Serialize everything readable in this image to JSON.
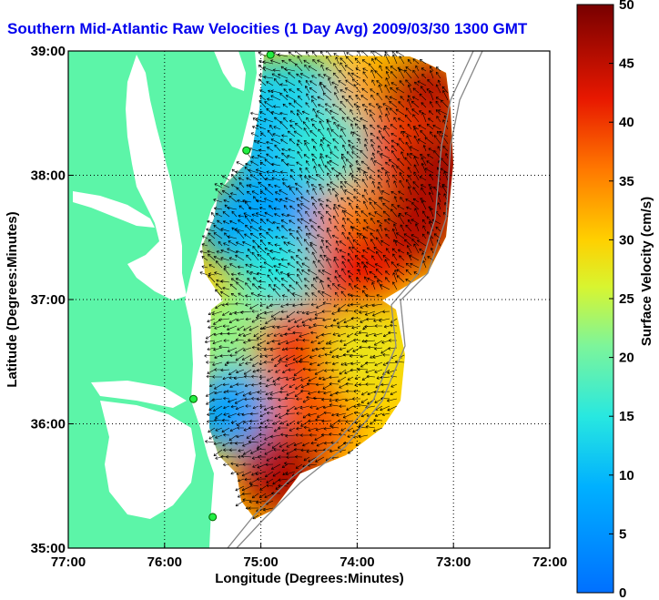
{
  "title": "Southern Mid-Atlantic Raw Velocities (1 Day Avg) 2009/03/30 1300 GMT",
  "map": {
    "xlabel": "Longitude (Degrees:Minutes)",
    "ylabel": "Latitude (Degrees:Minutes)",
    "x_ticks": [
      "77:00",
      "76:00",
      "75:00",
      "74:00",
      "73:00",
      "72:00"
    ],
    "y_ticks": [
      "39:00",
      "38:00",
      "37:00",
      "36:00",
      "35:00"
    ],
    "lon_range": [
      -77,
      -72
    ],
    "lat_range": [
      35,
      39
    ],
    "grid": "dotted",
    "land_color": "#5cf5a8",
    "background_color": "#ffffff"
  },
  "colorbar": {
    "label": "Surface Velocity (cm/s)",
    "range": [
      0,
      50
    ],
    "ticks": [
      "0",
      "5",
      "10",
      "15",
      "20",
      "25",
      "30",
      "35",
      "40",
      "45",
      "50"
    ],
    "colormap": "jet"
  },
  "chart_data": {
    "type": "heatmap",
    "description_units": "cm/s",
    "field": [
      {
        "lon": -74.9,
        "lat": 38.6,
        "value": 12
      },
      {
        "lon": -74.5,
        "lat": 38.6,
        "value": 13
      },
      {
        "lon": -73.8,
        "lat": 38.6,
        "value": 33
      },
      {
        "lon": -73.3,
        "lat": 38.6,
        "value": 46
      },
      {
        "lon": -74.9,
        "lat": 38.2,
        "value": 10
      },
      {
        "lon": -74.3,
        "lat": 38.2,
        "value": 16
      },
      {
        "lon": -73.5,
        "lat": 38.2,
        "value": 40
      },
      {
        "lon": -73.1,
        "lat": 38.0,
        "value": 47
      },
      {
        "lon": -75.2,
        "lat": 37.6,
        "value": 8
      },
      {
        "lon": -74.7,
        "lat": 37.6,
        "value": 6
      },
      {
        "lon": -74.0,
        "lat": 37.6,
        "value": 35
      },
      {
        "lon": -73.4,
        "lat": 37.6,
        "value": 46
      },
      {
        "lon": -74.8,
        "lat": 37.2,
        "value": 15
      },
      {
        "lon": -74.0,
        "lat": 37.2,
        "value": 42
      },
      {
        "lon": -75.3,
        "lat": 36.7,
        "value": 22
      },
      {
        "lon": -74.6,
        "lat": 36.6,
        "value": 40
      },
      {
        "lon": -73.9,
        "lat": 36.6,
        "value": 28
      },
      {
        "lon": -75.3,
        "lat": 36.1,
        "value": 7
      },
      {
        "lon": -74.5,
        "lat": 36.0,
        "value": 38
      },
      {
        "lon": -74.8,
        "lat": 35.6,
        "value": 46
      }
    ],
    "stations": [
      {
        "lon": -74.9,
        "lat": 38.97
      },
      {
        "lon": -75.15,
        "lat": 38.2
      },
      {
        "lon": -75.7,
        "lat": 36.2
      },
      {
        "lon": -75.5,
        "lat": 35.25
      }
    ]
  }
}
